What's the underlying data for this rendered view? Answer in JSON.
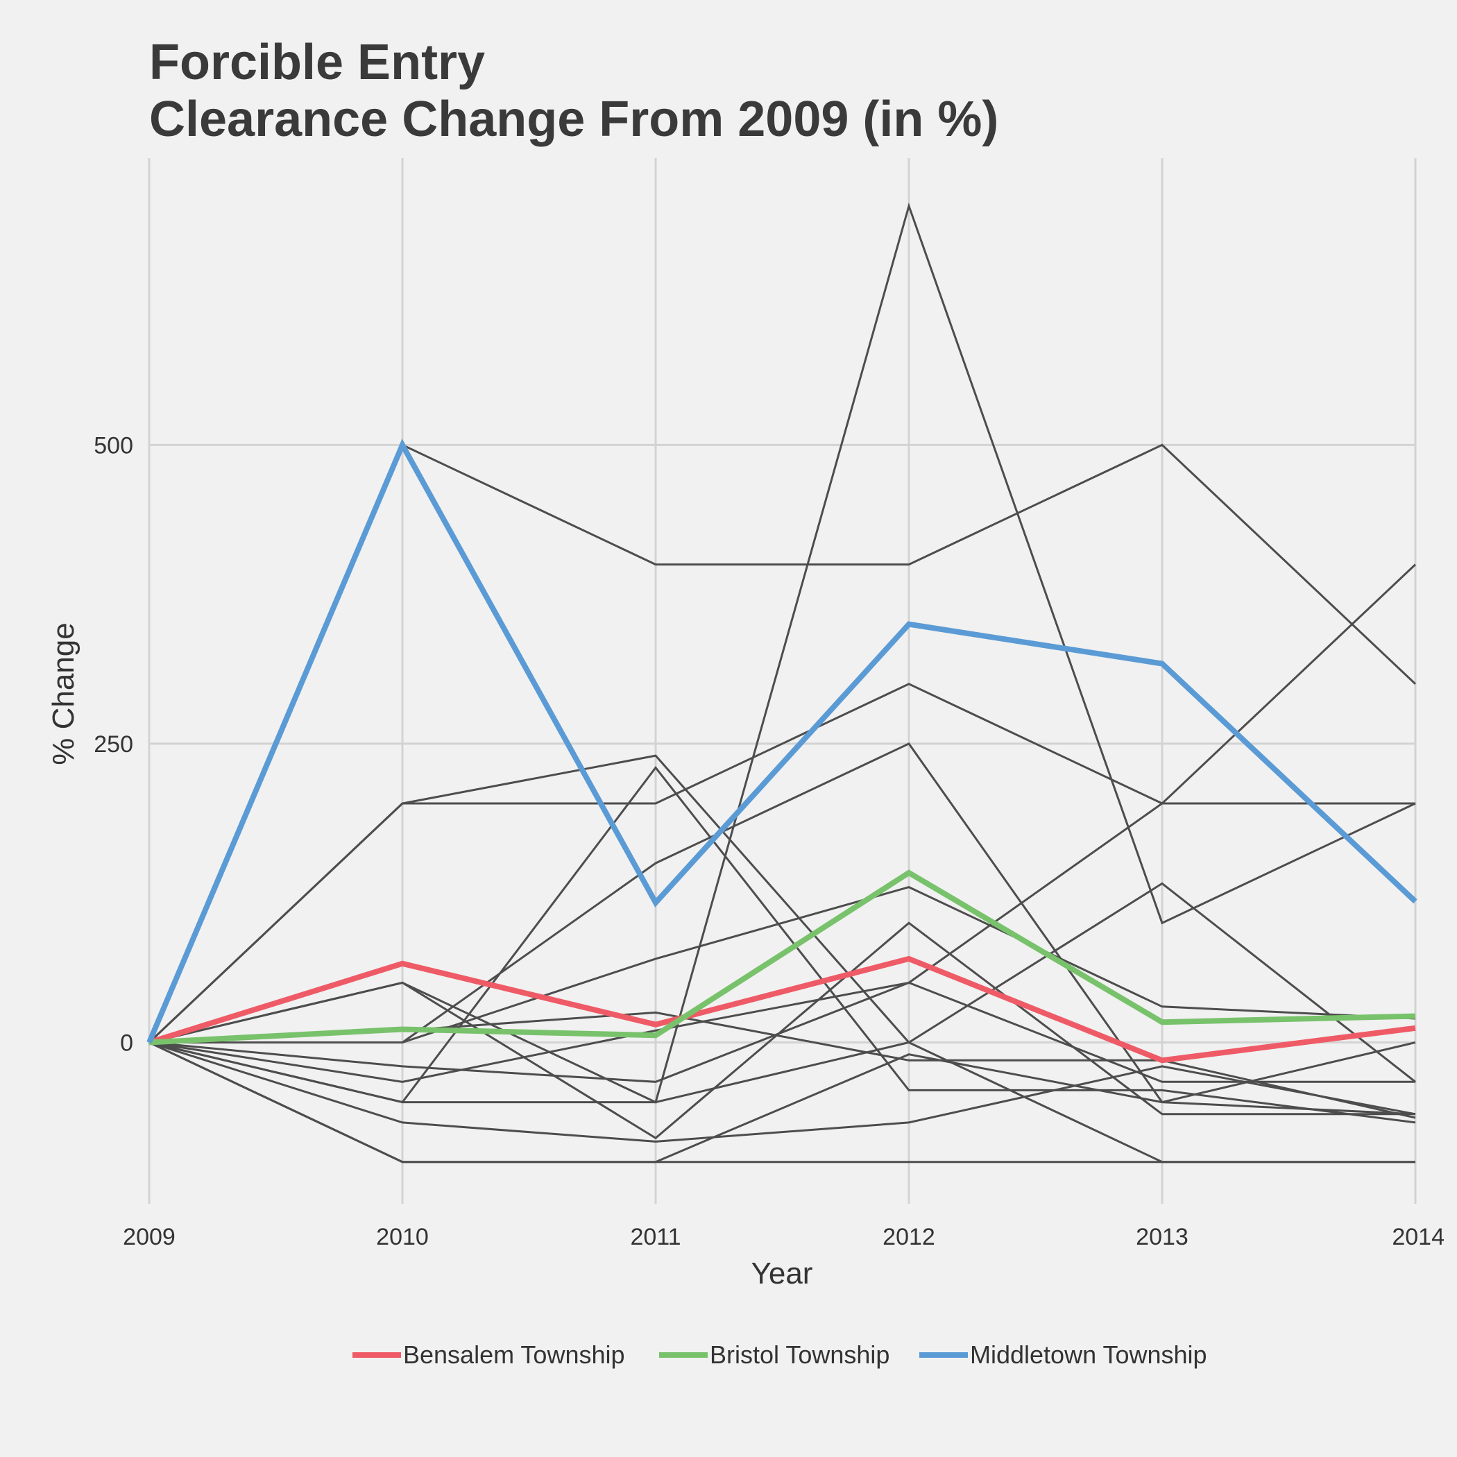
{
  "chart_data": {
    "type": "line",
    "title": "Forcible Entry",
    "subtitle": "Clearance Change From 2009 (in %)",
    "xlabel": "Year",
    "ylabel": "% Change",
    "x": [
      2009,
      2010,
      2011,
      2012,
      2013,
      2014
    ],
    "x_tick_labels": [
      "2009",
      "2010",
      "2011",
      "2012",
      "2013",
      "2014"
    ],
    "y_ticks": [
      0,
      250,
      500
    ],
    "y_tick_labels": [
      "0",
      "250",
      "500"
    ],
    "ylim": [
      -135,
      740
    ],
    "grid": true,
    "legend_position": "bottom",
    "background_series_color": "#4d4d4d",
    "background_series": [
      {
        "values": [
          0,
          500,
          400,
          400,
          500,
          300
        ]
      },
      {
        "values": [
          0,
          200,
          200,
          300,
          200,
          200
        ]
      },
      {
        "values": [
          0,
          200,
          240,
          0,
          -100,
          -100
        ]
      },
      {
        "values": [
          0,
          50,
          -50,
          700,
          100,
          200
        ]
      },
      {
        "values": [
          0,
          -50,
          230,
          -40,
          -40,
          -67
        ]
      },
      {
        "values": [
          0,
          0,
          150,
          250,
          -50,
          0
        ]
      },
      {
        "values": [
          0,
          0,
          70,
          130,
          30,
          20
        ]
      },
      {
        "values": [
          0,
          50,
          -80,
          100,
          -60,
          -60
        ]
      },
      {
        "values": [
          0,
          -20,
          -33,
          50,
          200,
          400
        ]
      },
      {
        "values": [
          0,
          -33,
          10,
          50,
          -33,
          -33
        ]
      },
      {
        "values": [
          0,
          -50,
          -50,
          0,
          133,
          -33
        ]
      },
      {
        "values": [
          0,
          -67,
          -83,
          -67,
          -20,
          -60
        ]
      },
      {
        "values": [
          0,
          -100,
          -100,
          -10,
          -50,
          -60
        ]
      },
      {
        "values": [
          0,
          -100,
          -100,
          -100,
          -100,
          -100
        ]
      },
      {
        "values": [
          0,
          10,
          25,
          -15,
          -15,
          -63
        ]
      }
    ],
    "series": [
      {
        "name": "Bensalem Township",
        "color": "#ee5b66",
        "values": [
          0,
          66,
          15,
          70,
          -15,
          12
        ]
      },
      {
        "name": "Bristol Township",
        "color": "#78c26b",
        "values": [
          0,
          11,
          6,
          142,
          17,
          22
        ]
      },
      {
        "name": "Middletown Township",
        "color": "#5b9bd5",
        "values": [
          0,
          500,
          117,
          350,
          317,
          118
        ]
      }
    ]
  }
}
